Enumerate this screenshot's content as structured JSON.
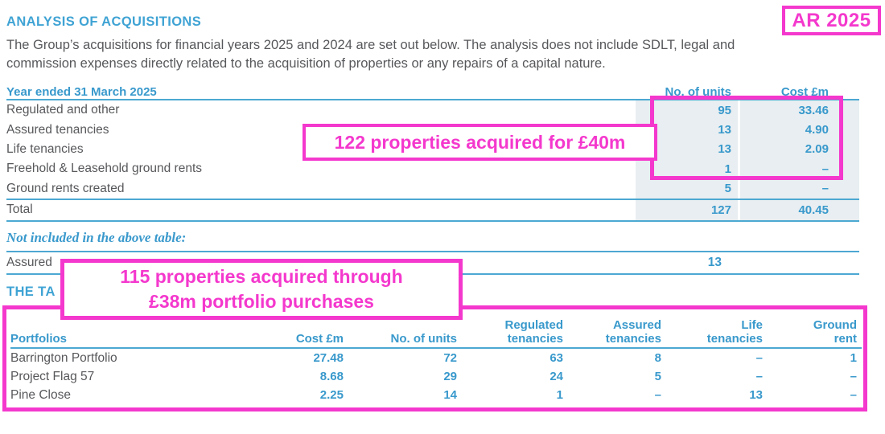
{
  "badge": {
    "label": "AR 2025"
  },
  "header": {
    "title": "ANALYSIS OF ACQUISITIONS",
    "intro_line1": "The Group’s acquisitions for financial years 2025 and 2024 are set out below. The analysis does not include SDLT, legal and",
    "intro_line2": "commission expenses directly related to the acquisition of properties or any repairs of a capital nature."
  },
  "acquisitions_table": {
    "title": "Year ended 31 March 2025",
    "columns": [
      "No. of units",
      "Cost £m"
    ],
    "rows": [
      {
        "label": "Regulated and other",
        "units": "95",
        "cost": "33.46"
      },
      {
        "label": "Assured tenancies",
        "units": "13",
        "cost": "4.90"
      },
      {
        "label": "Life tenancies",
        "units": "13",
        "cost": "2.09"
      },
      {
        "label": "Freehold & Leasehold ground rents",
        "units": "1",
        "cost": "–"
      },
      {
        "label": "Ground rents created",
        "units": "5",
        "cost": "–"
      }
    ],
    "total": {
      "label": "Total",
      "units": "127",
      "cost": "40.45"
    }
  },
  "excluded_section": {
    "heading": "Not included in the above table:",
    "row": {
      "label": "Assured",
      "units": "13"
    }
  },
  "second_heading": "THE TA",
  "annotations": {
    "acquired": "122 properties acquired for £40m",
    "portfolio_line1": "115 properties acquired through",
    "portfolio_line2": "£38m portfolio purchases"
  },
  "portfolios_table": {
    "columns": {
      "name": "Portfolios",
      "cost": "Cost £m",
      "units": "No. of units",
      "regulated": [
        "Regulated",
        "tenancies"
      ],
      "assured": [
        "Assured",
        "tenancies"
      ],
      "life": [
        "Life",
        "tenancies"
      ],
      "ground": [
        "Ground",
        "rent"
      ]
    },
    "rows": [
      {
        "name": "Barrington Portfolio",
        "cost": "27.48",
        "units": "72",
        "regulated": "63",
        "assured": "8",
        "life": "–",
        "ground": "1"
      },
      {
        "name": "Project Flag 57",
        "cost": "8.68",
        "units": "29",
        "regulated": "24",
        "assured": "5",
        "life": "–",
        "ground": "–"
      },
      {
        "name": "Pine Close",
        "cost": "2.25",
        "units": "14",
        "regulated": "1",
        "assured": "–",
        "life": "13",
        "ground": "–"
      }
    ]
  },
  "colors": {
    "annotation_magenta": "#F438CD",
    "heading_blue": "#3FA3D4",
    "table_blue": "#3999CC",
    "rule_blue": "#4CA8D2",
    "shading": "#E8EEF1",
    "body_gray": "#57585B"
  }
}
